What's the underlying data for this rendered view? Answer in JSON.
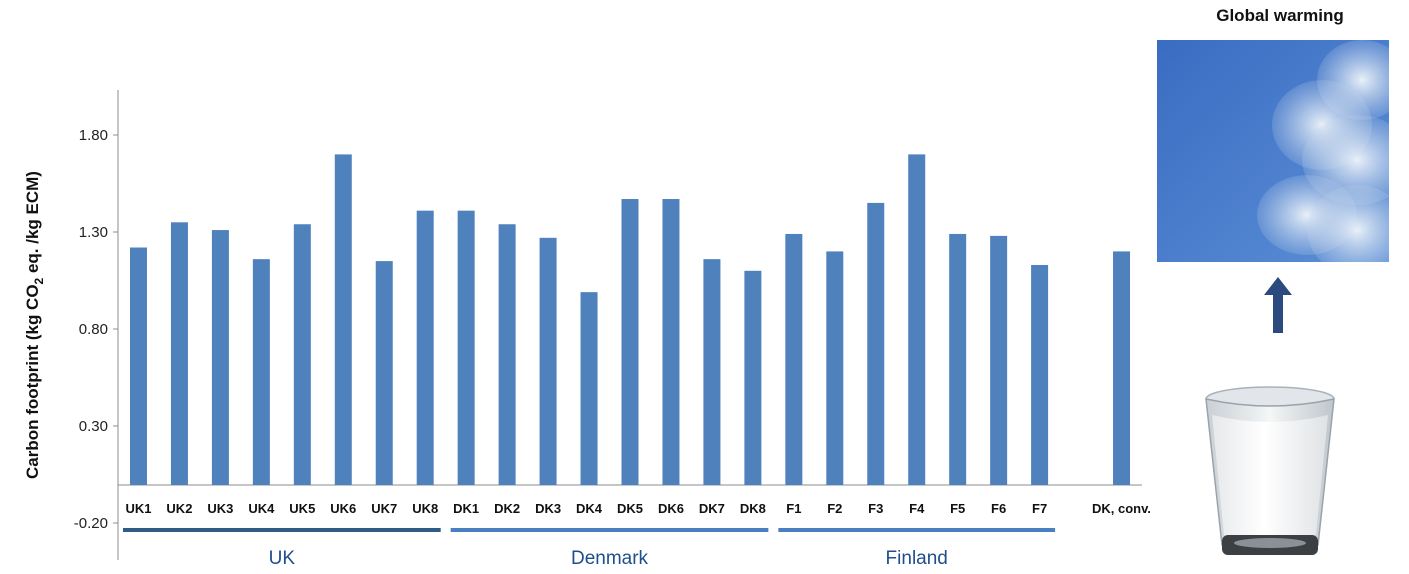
{
  "chart_data": {
    "type": "bar",
    "ylabel_parts": {
      "pre": "Carbon footprint (kg CO",
      "sub": "2",
      "post": " eq. /kg ECM)"
    },
    "yticks": [
      "-0.20",
      "0.30",
      "0.80",
      "1.30",
      "1.80"
    ],
    "ylim": [
      -0.2,
      2.0
    ],
    "categories": [
      "UK1",
      "UK2",
      "UK3",
      "UK4",
      "UK5",
      "UK6",
      "UK7",
      "UK8",
      "DK1",
      "DK2",
      "DK3",
      "DK4",
      "DK5",
      "DK6",
      "DK7",
      "DK8",
      "F1",
      "F2",
      "F3",
      "F4",
      "F5",
      "F6",
      "F7",
      "",
      "DK, conv."
    ],
    "values": [
      1.22,
      1.35,
      1.31,
      1.16,
      1.34,
      1.7,
      1.15,
      1.41,
      1.41,
      1.34,
      1.27,
      0.99,
      1.47,
      1.47,
      1.16,
      1.1,
      1.29,
      1.2,
      1.45,
      1.7,
      1.29,
      1.28,
      1.13,
      null,
      1.2
    ],
    "groups": [
      {
        "label": "UK",
        "start": 0,
        "end": 7,
        "color": "#2f5c87"
      },
      {
        "label": "Denmark",
        "start": 8,
        "end": 15,
        "color": "#4a7fc1"
      },
      {
        "label": "Finland",
        "start": 16,
        "end": 22,
        "color": "#4a7fc1"
      }
    ],
    "bar_color": "#4f81bd",
    "grid": false
  },
  "side_panel": {
    "title": "Global warming",
    "sky_icon": "cloud-sky-image",
    "arrow_icon": "arrow-up-icon",
    "milk_icon": "glass-of-milk-image"
  }
}
